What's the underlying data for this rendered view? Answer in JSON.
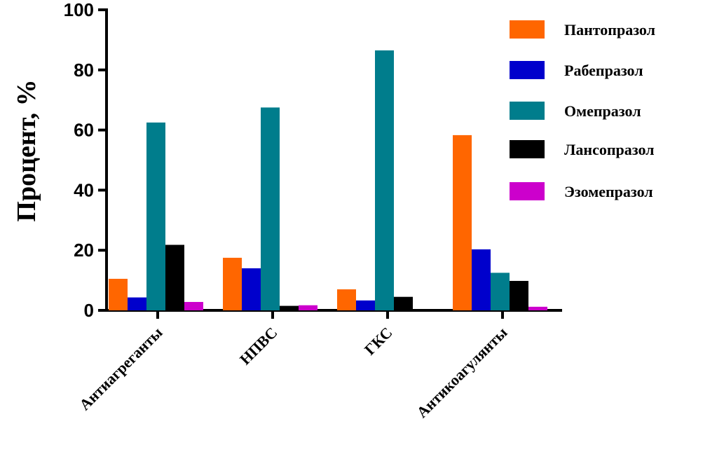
{
  "chart_data": {
    "type": "bar",
    "title": "",
    "xlabel": "",
    "ylabel": "Процент, %",
    "ylim": [
      0,
      100
    ],
    "yticks": [
      0,
      20,
      40,
      60,
      80,
      100
    ],
    "categories": [
      "Антиагреганты",
      "НПВС",
      "ГКС",
      "Антикоагулянты"
    ],
    "grid": false,
    "legend_position": "top-right",
    "series": [
      {
        "name": "Пантопразол",
        "color": "#ff6600",
        "values": [
          10.5,
          17.5,
          7,
          58.3
        ]
      },
      {
        "name": "Рабепразол",
        "color": "#0000cc",
        "values": [
          4.3,
          14,
          3.3,
          20.3
        ]
      },
      {
        "name": "Омепразол",
        "color": "#007d8c",
        "values": [
          62.5,
          67.5,
          86.5,
          12.5
        ]
      },
      {
        "name": "Лансопразол",
        "color": "#000000",
        "values": [
          21.8,
          1.5,
          4.5,
          9.8
        ]
      },
      {
        "name": "Эзомепразол",
        "color": "#cc00cc",
        "values": [
          2.8,
          1.7,
          0,
          1.2
        ]
      }
    ]
  }
}
